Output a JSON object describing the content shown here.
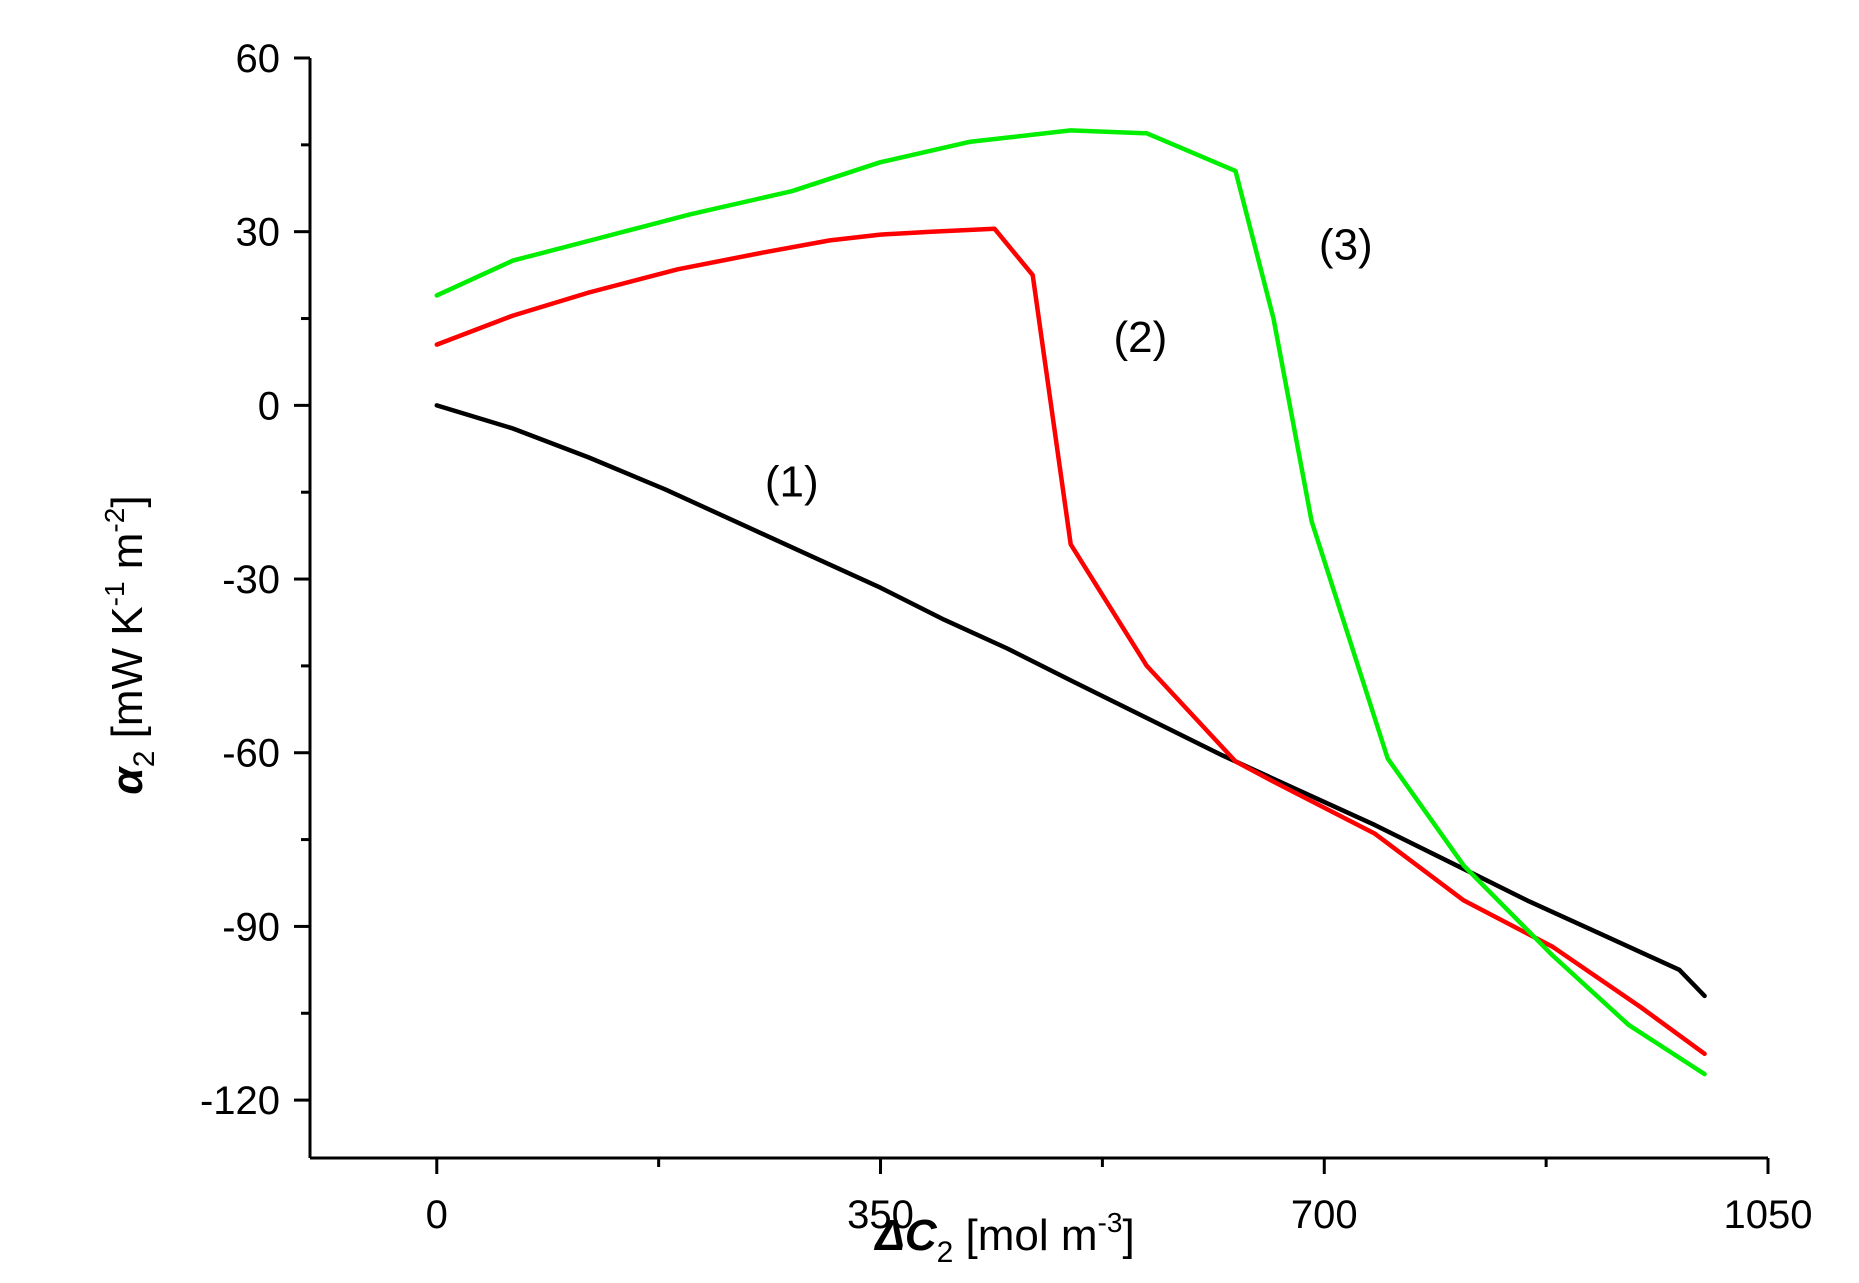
{
  "chart_data": {
    "type": "line",
    "title": "",
    "xlabel": {
      "main": "ΔC",
      "sub": "2",
      "units": "[mol m",
      "units_sup": "-3",
      "units_close": "]"
    },
    "ylabel": {
      "symbol": "α",
      "sub": "2",
      "units_1": "[mW K",
      "units_sup1": "-1",
      "units_2": "m",
      "units_sup2": "-2",
      "units_close": "]"
    },
    "xlim": [
      -100,
      1050
    ],
    "ylim": [
      -130,
      60
    ],
    "x_ticks": [
      0,
      350,
      700,
      1050
    ],
    "x_tick_labels": [
      "0",
      "350",
      "700",
      "1050"
    ],
    "x_minor_ticks": [
      175,
      525,
      875
    ],
    "y_ticks": [
      60,
      30,
      0,
      -30,
      -60,
      -90,
      -120
    ],
    "y_tick_labels": [
      "60",
      "30",
      "0",
      "-30",
      "-60",
      "-90",
      "-120"
    ],
    "y_minor_ticks": [
      45,
      15,
      -15,
      -45,
      -75,
      -105
    ],
    "series": [
      {
        "name": "(1)",
        "color": "#000000",
        "label_at": [
          280,
          -13
        ],
        "x": [
          0,
          60,
          120,
          180,
          240,
          300,
          350,
          400,
          450,
          500,
          560,
          620,
          680,
          740,
          800,
          860,
          920,
          980,
          1000
        ],
        "y": [
          0,
          -4,
          -9,
          -14.5,
          -20.5,
          -26.5,
          -31.5,
          -37,
          -42,
          -47.5,
          -54,
          -60.5,
          -66.5,
          -72.5,
          -79,
          -85.5,
          -91.5,
          -97.5,
          -102
        ]
      },
      {
        "name": "(2)",
        "color": "#ff0000",
        "label_at": [
          555,
          12
        ],
        "x": [
          0,
          60,
          120,
          190,
          260,
          310,
          350,
          390,
          440,
          470,
          500,
          560,
          630,
          660,
          740,
          810,
          880,
          950,
          1000
        ],
        "y": [
          10.5,
          15.5,
          19.5,
          23.5,
          26.5,
          28.5,
          29.5,
          30,
          30.5,
          22.5,
          -24,
          -45,
          -61.5,
          -65,
          -74,
          -85.5,
          -93.5,
          -104,
          -112
        ]
      },
      {
        "name": "(3)",
        "color": "#00ee00",
        "label_at": [
          717,
          28
        ],
        "x": [
          0,
          60,
          130,
          200,
          280,
          350,
          420,
          500,
          560,
          630,
          660,
          690,
          750,
          810,
          880,
          940,
          1000
        ],
        "y": [
          19,
          25,
          29,
          33,
          37,
          42,
          45.5,
          47.5,
          47,
          40.5,
          15,
          -20,
          -61,
          -79.5,
          -95,
          -107,
          -115.5
        ]
      }
    ]
  }
}
